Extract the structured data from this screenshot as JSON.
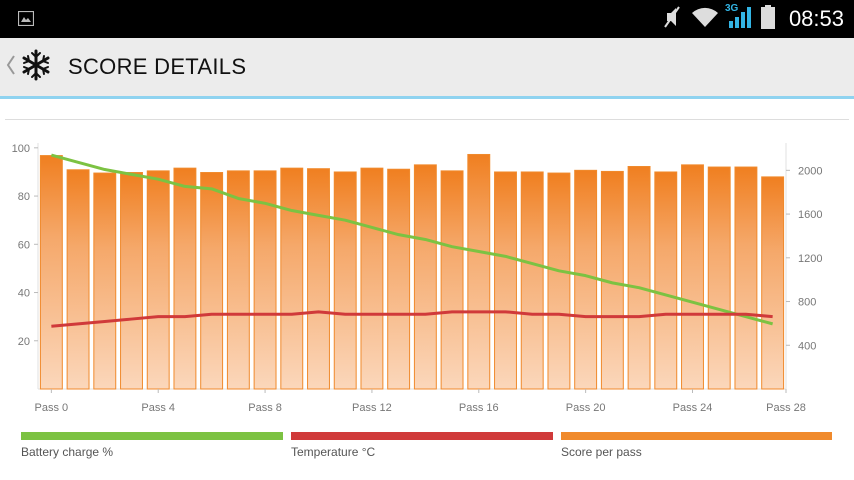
{
  "status_bar": {
    "time": "08:53",
    "network_label": "3G",
    "icons": [
      "image-notification-icon",
      "mute-icon",
      "wifi-icon",
      "signal-icon",
      "battery-icon"
    ]
  },
  "action_bar": {
    "title": "SCORE DETAILS",
    "icons": [
      "back-chevron-icon",
      "snowflake-app-icon"
    ]
  },
  "legend": [
    {
      "label": "Battery charge %",
      "color": "#7cc242"
    },
    {
      "label": "Temperature °C",
      "color": "#d03a3a"
    },
    {
      "label": "Score per pass",
      "color": "#f08a2c"
    }
  ],
  "chart_data": {
    "type": "bar",
    "categories": [
      "Pass 0",
      "Pass 1",
      "Pass 2",
      "Pass 3",
      "Pass 4",
      "Pass 5",
      "Pass 6",
      "Pass 7",
      "Pass 8",
      "Pass 9",
      "Pass 10",
      "Pass 11",
      "Pass 12",
      "Pass 13",
      "Pass 14",
      "Pass 15",
      "Pass 16",
      "Pass 17",
      "Pass 18",
      "Pass 19",
      "Pass 20",
      "Pass 21",
      "Pass 22",
      "Pass 23",
      "Pass 24",
      "Pass 25",
      "Pass 26",
      "Pass 27"
    ],
    "x_tick_labels": [
      "Pass 0",
      "Pass 4",
      "Pass 8",
      "Pass 12",
      "Pass 16",
      "Pass 20",
      "Pass 24",
      "Pass 28"
    ],
    "left_axis": {
      "ticks": [
        20,
        40,
        60,
        80,
        100
      ],
      "range": [
        0,
        102
      ]
    },
    "right_axis": {
      "ticks": [
        400,
        800,
        1200,
        1600,
        2000
      ],
      "range": [
        0,
        2250
      ]
    },
    "grid": false,
    "series": [
      {
        "name": "Score per pass",
        "axis": "right",
        "style": "bar",
        "color": "#f08a2c",
        "values": [
          2135,
          2005,
          1975,
          1980,
          1995,
          2020,
          1980,
          1995,
          1995,
          2020,
          2015,
          1985,
          2020,
          2010,
          2050,
          1995,
          2145,
          1985,
          1985,
          1975,
          2000,
          1990,
          2035,
          1985,
          2050,
          2030,
          2030,
          1940
        ]
      },
      {
        "name": "Battery charge %",
        "axis": "left",
        "style": "line",
        "color": "#7cc242",
        "values": [
          97,
          94,
          91,
          89,
          87,
          84,
          83,
          79,
          77,
          74,
          72,
          70,
          67,
          64,
          62,
          59,
          57,
          55,
          52,
          49,
          47,
          44,
          42,
          39,
          36,
          33,
          30,
          27
        ]
      },
      {
        "name": "Temperature °C",
        "axis": "left",
        "style": "line",
        "color": "#d03a3a",
        "values": [
          26,
          27,
          28,
          29,
          30,
          30,
          31,
          31,
          31,
          31,
          32,
          31,
          31,
          31,
          31,
          32,
          32,
          32,
          31,
          31,
          30,
          30,
          30,
          31,
          31,
          31,
          31,
          30
        ]
      }
    ]
  }
}
